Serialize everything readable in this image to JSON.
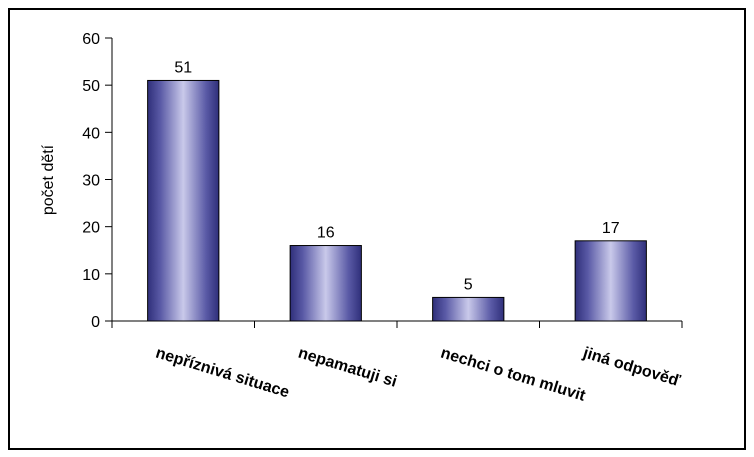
{
  "chart_data": {
    "type": "bar",
    "title": "",
    "xlabel": "",
    "ylabel": "počet dětí",
    "categories": [
      "nepříznivá situace",
      "nepamatuji si",
      "nechci o tom mluvit",
      "jiná odpověď"
    ],
    "values": [
      51,
      16,
      5,
      17
    ],
    "ylim": [
      0,
      60
    ],
    "yticks": [
      0,
      10,
      20,
      30,
      40,
      50,
      60
    ],
    "grid": false,
    "legend": "none",
    "data_labels": true
  },
  "colors": {
    "bar_dark": "#2f2f7a",
    "bar_light": "#c9c9ea",
    "axis": "#000000",
    "border": "#000000"
  }
}
